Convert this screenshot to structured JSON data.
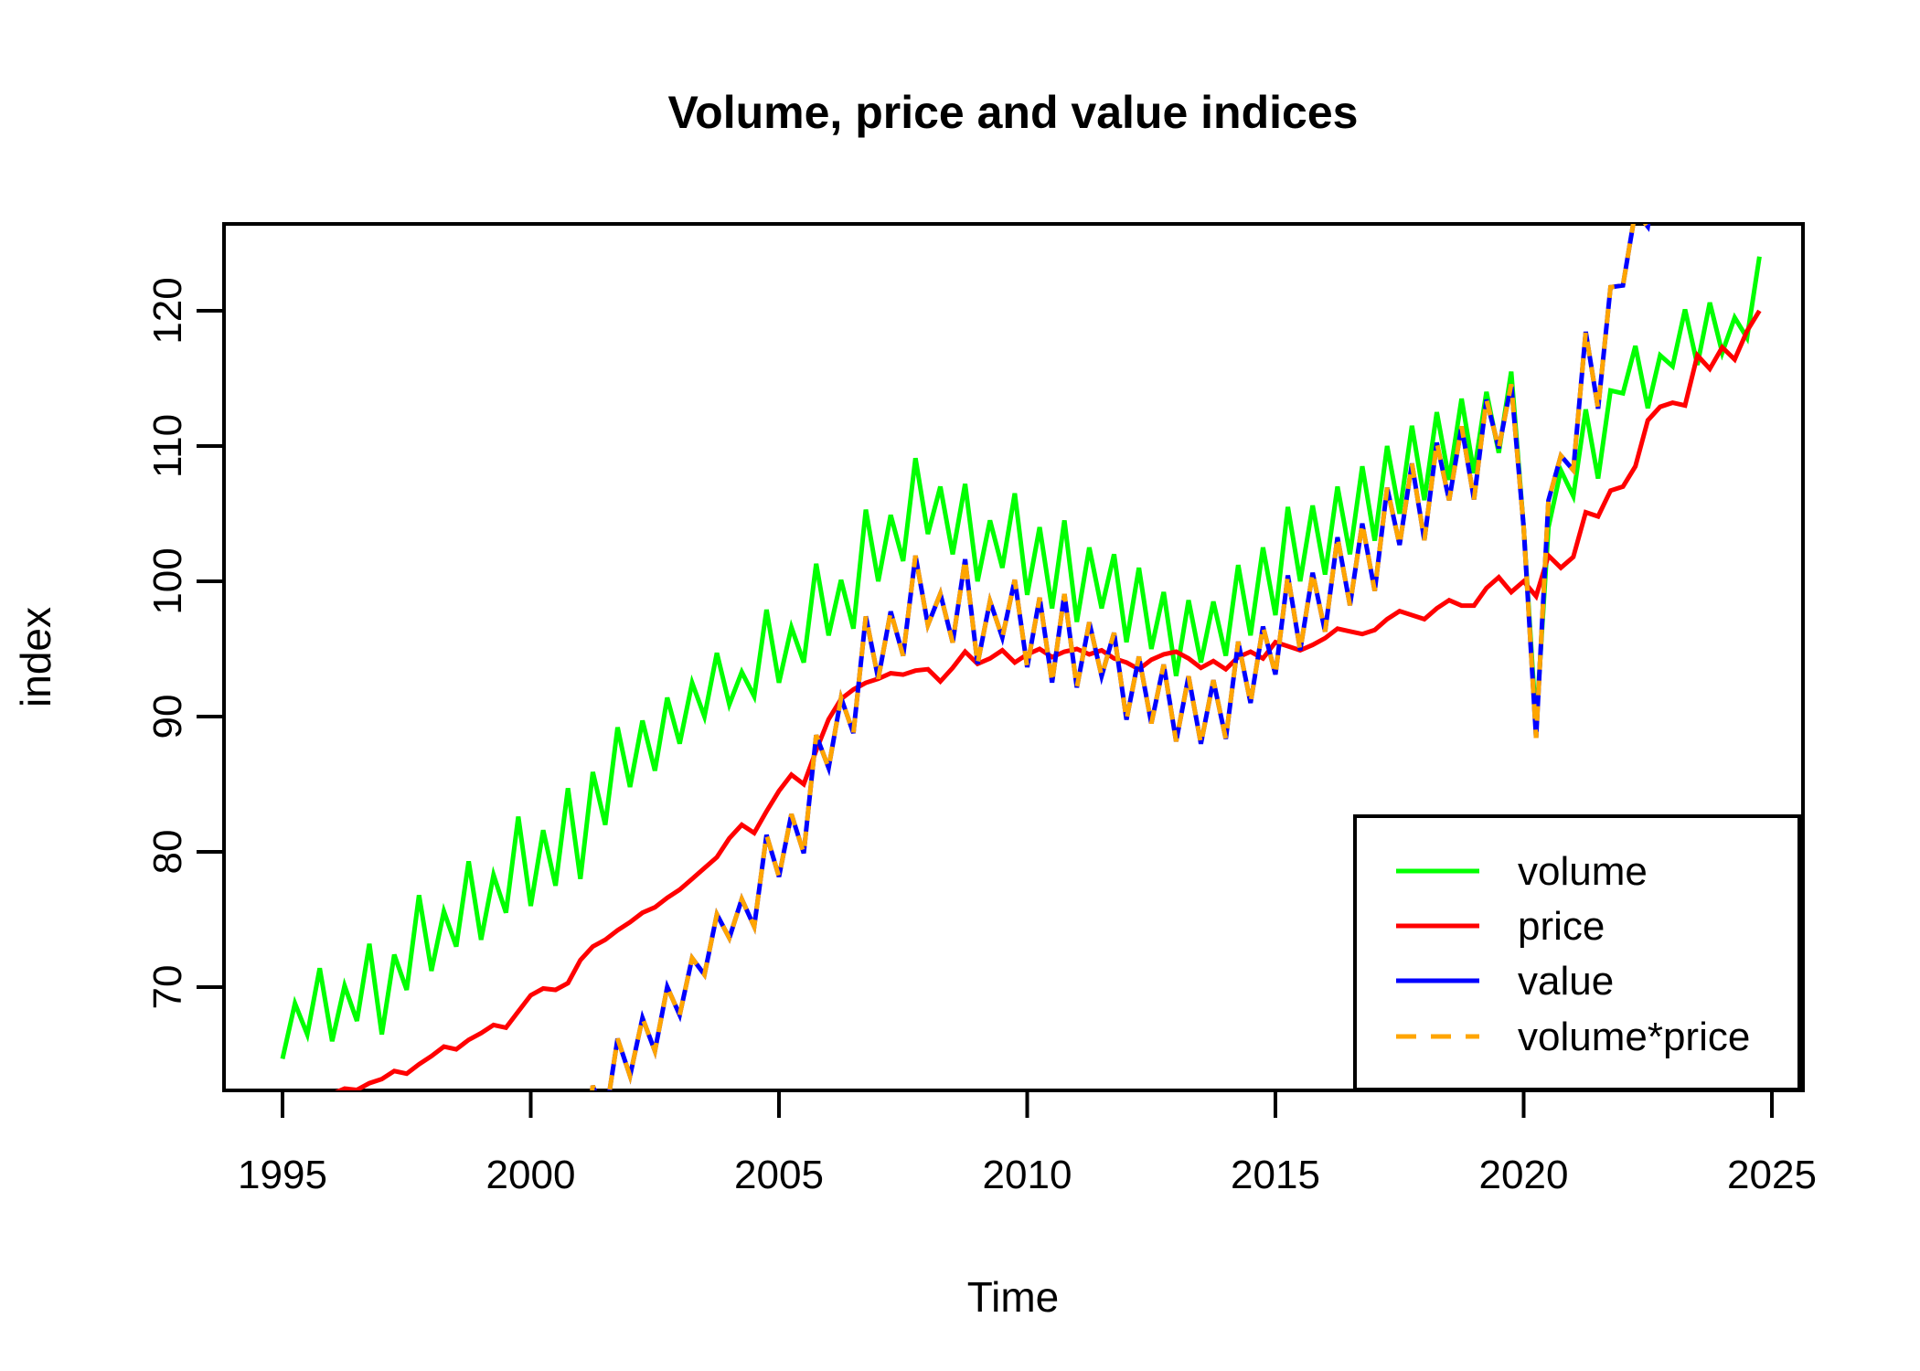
{
  "chart_data": {
    "type": "line",
    "title": "Volume, price and value indices",
    "xlabel": "Time",
    "ylabel": "index",
    "x_ticks": [
      1995,
      2000,
      2005,
      2010,
      2015,
      2020,
      2025
    ],
    "y_ticks": [
      70,
      80,
      90,
      100,
      110,
      120
    ],
    "xlim": [
      1993.8,
      2025.6
    ],
    "ylim": [
      62.4,
      126.4
    ],
    "grid": false,
    "frequency": "quarterly",
    "x_start": 1995.0,
    "x_step": 0.25,
    "legend_position": "bottomright",
    "note": "value and volume*price overlap exactly (value = volume x price / 100); that combined line enters the plot from below around 2001-2002 and exits above the top of the plot after mid-2022",
    "series": [
      {
        "id": "volume",
        "name": "volume",
        "color": "#00ff00",
        "dash": false,
        "values": [
          64.7,
          68.8,
          66.5,
          71.4,
          66.0,
          70.1,
          67.5,
          73.2,
          66.5,
          72.4,
          69.8,
          76.8,
          71.2,
          75.6,
          73.0,
          79.3,
          73.5,
          78.3,
          75.5,
          82.6,
          76.0,
          81.6,
          77.5,
          84.7,
          78.0,
          85.9,
          82.0,
          89.2,
          84.8,
          89.7,
          86.0,
          91.4,
          88.0,
          92.5,
          90.0,
          94.7,
          90.9,
          93.3,
          91.5,
          97.9,
          92.5,
          96.6,
          94.0,
          101.3,
          96.0,
          100.1,
          96.5,
          105.3,
          100.0,
          104.9,
          101.5,
          109.1,
          103.5,
          107.0,
          102.0,
          107.2,
          100.0,
          104.5,
          101.0,
          106.5,
          99.0,
          104.0,
          98.0,
          104.5,
          97.0,
          102.5,
          98.0,
          102.0,
          95.5,
          101.0,
          95.0,
          99.2,
          93.0,
          98.6,
          94.0,
          98.5,
          94.5,
          101.2,
          96.0,
          102.5,
          97.5,
          105.5,
          100.0,
          105.6,
          100.5,
          107.0,
          102.0,
          108.5,
          103.0,
          110.0,
          105.0,
          111.5,
          106.0,
          112.5,
          107.5,
          113.5,
          108.0,
          114.0,
          109.5,
          115.5,
          104.0,
          89.4,
          104.0,
          108.2,
          106.3,
          112.7,
          107.6,
          114.1,
          113.9,
          117.4,
          112.8,
          116.7,
          115.9,
          120.1,
          116.0,
          120.6,
          116.9,
          119.5,
          118.0,
          124.0
        ]
      },
      {
        "id": "price",
        "name": "price",
        "color": "#ff0000",
        "dash": false,
        "values": [
          61.2,
          61.6,
          61.5,
          61.9,
          62.1,
          62.5,
          62.4,
          62.9,
          63.2,
          63.8,
          63.6,
          64.3,
          64.9,
          65.6,
          65.4,
          66.1,
          66.6,
          67.2,
          67.0,
          68.2,
          69.4,
          69.9,
          69.8,
          70.3,
          72.0,
          73.0,
          73.5,
          74.2,
          74.8,
          75.5,
          75.9,
          76.6,
          77.2,
          78.0,
          78.8,
          79.6,
          81.0,
          82.0,
          81.4,
          83.0,
          84.5,
          85.7,
          85.0,
          87.5,
          89.8,
          91.3,
          92.0,
          92.5,
          92.8,
          93.2,
          93.1,
          93.4,
          93.5,
          92.6,
          93.6,
          94.8,
          93.9,
          94.3,
          94.9,
          94.0,
          94.6,
          95.0,
          94.4,
          94.8,
          95.0,
          94.6,
          94.9,
          94.3,
          94.0,
          93.5,
          94.2,
          94.6,
          94.8,
          94.3,
          93.6,
          94.1,
          93.5,
          94.4,
          94.8,
          94.3,
          95.5,
          95.2,
          94.9,
          95.3,
          95.8,
          96.5,
          96.3,
          96.1,
          96.4,
          97.2,
          97.8,
          97.5,
          97.2,
          98.0,
          98.6,
          98.2,
          98.2,
          99.5,
          100.3,
          99.2,
          100.0,
          98.9,
          101.9,
          101.0,
          101.8,
          105.1,
          104.8,
          106.7,
          107.0,
          108.5,
          111.9,
          112.9,
          113.2,
          113.0,
          116.7,
          115.7,
          117.3,
          116.4,
          118.5,
          120.0
        ]
      },
      {
        "id": "value",
        "name": "value",
        "color": "#0000ff",
        "dash": false,
        "derived": "volume*price/100"
      },
      {
        "id": "volume_price",
        "name": "volume*price",
        "color": "#ffa500",
        "dash": true,
        "derived": "volume*price/100"
      }
    ]
  }
}
